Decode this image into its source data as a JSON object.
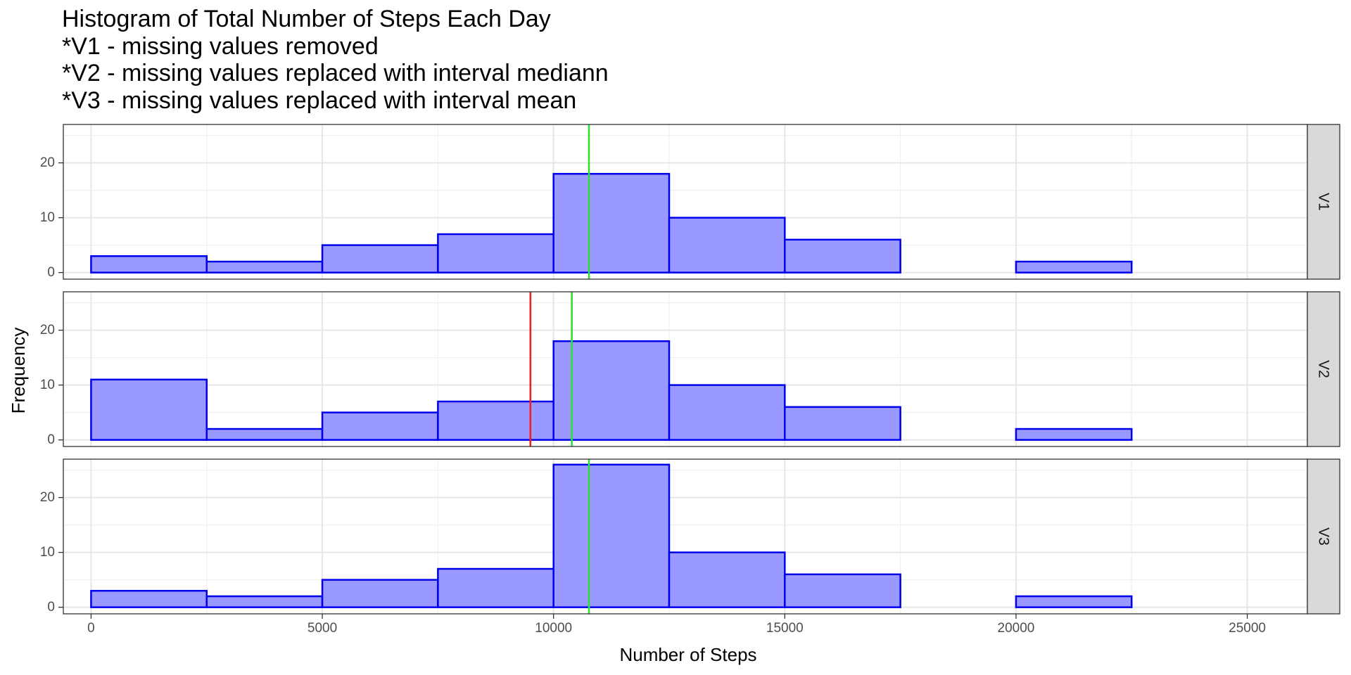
{
  "chart_data": {
    "type": "bar",
    "title_lines": [
      "Histogram of Total Number of Steps Each Day",
      "*V1 - missing values removed",
      "*V2 - missing values replaced with interval mediann",
      "*V3 - missing values replaced with interval mean"
    ],
    "xlabel": "Number of Steps",
    "ylabel": "Frequency",
    "xlim": [
      -600,
      26300
    ],
    "ylim": [
      -1.2,
      27
    ],
    "x_ticks": [
      0,
      5000,
      10000,
      15000,
      20000,
      25000
    ],
    "y_ticks": [
      0,
      10,
      20
    ],
    "grid": true,
    "bin_width": 2500,
    "bin_starts": [
      0,
      2500,
      5000,
      7500,
      10000,
      12500,
      15000,
      17500,
      20000,
      22500
    ],
    "bar_fill": "#9999ff",
    "bar_stroke": "#0000ee",
    "panels": [
      {
        "name": "V1",
        "values": [
          3,
          2,
          5,
          7,
          18,
          10,
          6,
          0,
          2,
          0
        ],
        "vlines": [
          {
            "x": 10766,
            "color": "#33dd33"
          }
        ]
      },
      {
        "name": "V2",
        "values": [
          11,
          2,
          5,
          7,
          18,
          10,
          6,
          0,
          2,
          0
        ],
        "vlines": [
          {
            "x": 9500,
            "color": "#ee2222"
          },
          {
            "x": 10395,
            "color": "#33dd33"
          }
        ]
      },
      {
        "name": "V3",
        "values": [
          3,
          2,
          5,
          7,
          26,
          10,
          6,
          0,
          2,
          0
        ],
        "vlines": [
          {
            "x": 10766,
            "color": "#33dd33"
          }
        ]
      }
    ]
  }
}
